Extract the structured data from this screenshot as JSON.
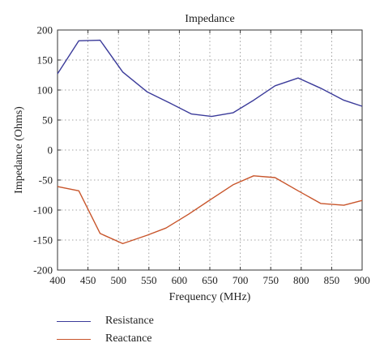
{
  "chart_data": {
    "type": "line",
    "title": "Impedance",
    "xlabel": "Frequency (MHz)",
    "ylabel": "Impedance (Ohms)",
    "xlim": [
      400,
      900
    ],
    "ylim": [
      -200,
      200
    ],
    "xticks": [
      400,
      450,
      500,
      550,
      600,
      650,
      700,
      750,
      800,
      850,
      900
    ],
    "yticks": [
      -200,
      -150,
      -100,
      -50,
      0,
      50,
      100,
      150,
      200
    ],
    "grid": true,
    "legend_position": "bottom-left, below plot",
    "series": [
      {
        "name": "Resistance",
        "color": "#3b3b9a",
        "x": [
          400,
          435,
          470,
          507,
          547,
          585,
          620,
          653,
          688,
          722,
          757,
          795,
          832,
          870,
          900
        ],
        "y": [
          127,
          182,
          183,
          130,
          97,
          78,
          60,
          56,
          62,
          83,
          107,
          120,
          103,
          83,
          73
        ]
      },
      {
        "name": "Reactance",
        "color": "#c8552b",
        "x": [
          400,
          435,
          470,
          507,
          547,
          578,
          615,
          652,
          688,
          722,
          757,
          795,
          832,
          870,
          900
        ],
        "y": [
          -61,
          -68,
          -139,
          -156,
          -142,
          -130,
          -107,
          -82,
          -58,
          -43,
          -46,
          -68,
          -89,
          -92,
          -84
        ]
      }
    ]
  }
}
